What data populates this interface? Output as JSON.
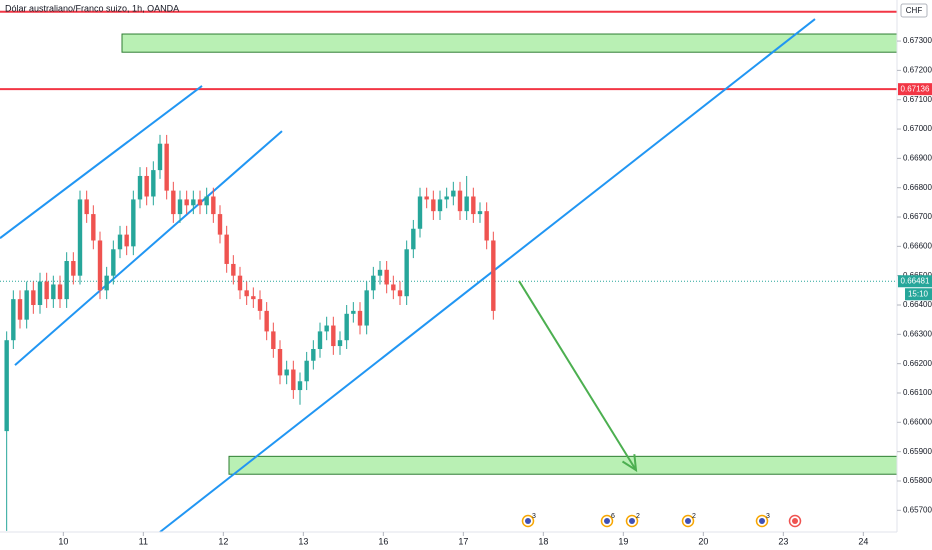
{
  "chart_data": {
    "type": "candlestick",
    "title": "Dólar australiano/Franco suizo, 1h, OANDA",
    "currency": "CHF",
    "countdown": "15:10",
    "up_color": "#26a69a",
    "down_color": "#ef5350",
    "x": [
      2,
      4,
      6,
      8,
      10,
      12,
      14,
      16,
      18,
      20,
      22,
      24,
      26,
      28,
      30,
      32,
      34,
      36,
      38,
      40,
      42,
      44,
      46,
      48,
      50,
      52,
      54,
      56,
      58,
      60,
      62,
      64,
      66,
      68,
      70,
      72,
      74,
      76,
      78,
      80,
      82,
      84,
      86,
      88,
      90,
      92,
      94,
      96,
      98,
      100,
      102,
      104,
      106,
      108,
      110,
      112,
      114,
      116,
      118,
      120,
      122,
      124,
      126,
      128,
      130,
      132,
      134,
      136,
      138,
      140,
      142,
      144,
      146,
      148
    ],
    "open": [
      0.6597,
      0.6628,
      0.6642,
      0.6635,
      0.6645,
      0.664,
      0.6648,
      0.6642,
      0.6647,
      0.6642,
      0.6655,
      0.665,
      0.6676,
      0.6671,
      0.6662,
      0.6645,
      0.665,
      0.6659,
      0.6664,
      0.666,
      0.6676,
      0.6684,
      0.6677,
      0.6686,
      0.6695,
      0.6679,
      0.6671,
      0.6676,
      0.6674,
      0.6676,
      0.6674,
      0.6677,
      0.6671,
      0.6664,
      0.6654,
      0.665,
      0.6645,
      0.6643,
      0.6642,
      0.6638,
      0.6631,
      0.6625,
      0.6616,
      0.6618,
      0.6611,
      0.6614,
      0.6621,
      0.6625,
      0.6631,
      0.6633,
      0.6626,
      0.6628,
      0.6637,
      0.6638,
      0.6633,
      0.6645,
      0.665,
      0.6652,
      0.6647,
      0.6645,
      0.6643,
      0.6659,
      0.6666,
      0.6677,
      0.6676,
      0.6672,
      0.6676,
      0.6677,
      0.6679,
      0.6672,
      0.6677,
      0.6671,
      0.6672,
      0.6662
    ],
    "high": [
      0.6631,
      0.6645,
      0.6645,
      0.6648,
      0.6648,
      0.6651,
      0.6651,
      0.665,
      0.665,
      0.6658,
      0.6658,
      0.6679,
      0.6679,
      0.6674,
      0.6665,
      0.6653,
      0.6662,
      0.6667,
      0.6667,
      0.6679,
      0.6687,
      0.6687,
      0.6689,
      0.6698,
      0.6698,
      0.6682,
      0.6679,
      0.6679,
      0.6679,
      0.6679,
      0.668,
      0.668,
      0.6674,
      0.6667,
      0.6657,
      0.6653,
      0.6648,
      0.6646,
      0.6645,
      0.6641,
      0.6634,
      0.6628,
      0.6621,
      0.6621,
      0.6617,
      0.6624,
      0.6628,
      0.6634,
      0.6636,
      0.6636,
      0.6631,
      0.664,
      0.6641,
      0.6641,
      0.6648,
      0.6653,
      0.6655,
      0.6655,
      0.665,
      0.6648,
      0.6662,
      0.6669,
      0.668,
      0.668,
      0.6679,
      0.6679,
      0.668,
      0.6682,
      0.6682,
      0.6684,
      0.668,
      0.6675,
      0.6675,
      0.6665
    ],
    "low": [
      0.6563,
      0.6625,
      0.6632,
      0.6632,
      0.6637,
      0.6637,
      0.6639,
      0.6639,
      0.6639,
      0.6639,
      0.6647,
      0.6647,
      0.6668,
      0.6659,
      0.6642,
      0.6642,
      0.6647,
      0.6656,
      0.6657,
      0.6657,
      0.6673,
      0.6674,
      0.6674,
      0.6683,
      0.6676,
      0.6668,
      0.6668,
      0.6671,
      0.6671,
      0.6671,
      0.6671,
      0.6668,
      0.6661,
      0.6651,
      0.6647,
      0.6642,
      0.664,
      0.6639,
      0.6635,
      0.6628,
      0.6622,
      0.6613,
      0.6613,
      0.6608,
      0.6606,
      0.6611,
      0.6618,
      0.6622,
      0.6628,
      0.6623,
      0.6623,
      0.6625,
      0.6634,
      0.663,
      0.663,
      0.6642,
      0.6647,
      0.6644,
      0.6642,
      0.664,
      0.664,
      0.6656,
      0.6663,
      0.6673,
      0.6669,
      0.6669,
      0.6673,
      0.6674,
      0.6669,
      0.6669,
      0.6668,
      0.6668,
      0.6659,
      0.6635
    ],
    "close": [
      0.6628,
      0.6642,
      0.6635,
      0.6645,
      0.664,
      0.6648,
      0.6642,
      0.6647,
      0.6642,
      0.6655,
      0.665,
      0.6676,
      0.6671,
      0.6662,
      0.6645,
      0.665,
      0.6659,
      0.6664,
      0.666,
      0.6676,
      0.6684,
      0.6677,
      0.6686,
      0.6695,
      0.6679,
      0.6671,
      0.6676,
      0.6674,
      0.6676,
      0.6674,
      0.6677,
      0.6671,
      0.6664,
      0.6654,
      0.665,
      0.6645,
      0.6643,
      0.6642,
      0.6638,
      0.6631,
      0.6625,
      0.6616,
      0.6618,
      0.6611,
      0.6614,
      0.6621,
      0.6625,
      0.6631,
      0.6633,
      0.6626,
      0.6628,
      0.6637,
      0.6638,
      0.6633,
      0.6645,
      0.665,
      0.6652,
      0.6647,
      0.6645,
      0.6643,
      0.6659,
      0.6666,
      0.6677,
      0.6676,
      0.6672,
      0.6676,
      0.6677,
      0.6679,
      0.6672,
      0.6677,
      0.6671,
      0.6672,
      0.6662,
      0.6638
    ],
    "xlim": [
      0,
      269.1
    ],
    "xticks": [
      {
        "value": 19,
        "label": "10"
      },
      {
        "value": 43,
        "label": "11"
      },
      {
        "value": 67,
        "label": "12"
      },
      {
        "value": 91,
        "label": "13"
      },
      {
        "value": 115,
        "label": "16"
      },
      {
        "value": 139,
        "label": "17"
      },
      {
        "value": 163,
        "label": "18"
      },
      {
        "value": 187,
        "label": "19"
      },
      {
        "value": 211,
        "label": "20"
      },
      {
        "value": 235,
        "label": "23"
      },
      {
        "value": 259,
        "label": "24"
      }
    ],
    "ylim": [
      0.65626,
      0.6744
    ],
    "yticks": [
      {
        "value": 0.657,
        "label": "0.65700"
      },
      {
        "value": 0.658,
        "label": "0.65800"
      },
      {
        "value": 0.659,
        "label": "0.65900"
      },
      {
        "value": 0.66,
        "label": "0.66000"
      },
      {
        "value": 0.661,
        "label": "0.66100"
      },
      {
        "value": 0.662,
        "label": "0.66200"
      },
      {
        "value": 0.663,
        "label": "0.66300"
      },
      {
        "value": 0.664,
        "label": "0.66400"
      },
      {
        "value": 0.665,
        "label": "0.66500"
      },
      {
        "value": 0.666,
        "label": "0.66600"
      },
      {
        "value": 0.667,
        "label": "0.66700"
      },
      {
        "value": 0.668,
        "label": "0.66800"
      },
      {
        "value": 0.669,
        "label": "0.66900"
      },
      {
        "value": 0.67,
        "label": "0.67000"
      },
      {
        "value": 0.671,
        "label": "0.67100"
      },
      {
        "value": 0.672,
        "label": "0.67200"
      },
      {
        "value": 0.673,
        "label": "0.67300"
      }
    ],
    "levels": [
      {
        "value": 0.674,
        "color": "#f23645"
      },
      {
        "value": 0.67136,
        "color": "#f23645"
      }
    ],
    "zones": [
      {
        "x": 36.6,
        "y": [
          0.67262,
          0.67324
        ],
        "color": "#b9f0b4"
      },
      {
        "x": 68.7,
        "y": [
          0.65823,
          0.65884
        ],
        "color": "#b9f0b4"
      }
    ],
    "trendlines": [
      {
        "x": [
          0,
          60.6
        ],
        "y": [
          0.66628,
          0.67147
        ]
      },
      {
        "x": [
          4.5,
          84.6
        ],
        "y": [
          0.66195,
          0.66993
        ]
      },
      {
        "x": [
          48,
          244.5
        ],
        "y": [
          0.65626,
          0.67375
        ]
      }
    ],
    "trendline_color": "#2196f3",
    "arrow": {
      "x": [
        155.7,
        190.8
      ],
      "y": [
        0.66482,
        0.65837
      ],
      "color": "#4caf50"
    },
    "last_price": 0.66481,
    "events": [
      {
        "x": 158.4,
        "label": "3"
      },
      {
        "x": 182.1,
        "label": "6"
      },
      {
        "x": 189.6,
        "label": "2"
      },
      {
        "x": 206.4,
        "label": "2"
      },
      {
        "x": 228.6,
        "label": "3"
      },
      {
        "x": 238.5
      }
    ]
  }
}
